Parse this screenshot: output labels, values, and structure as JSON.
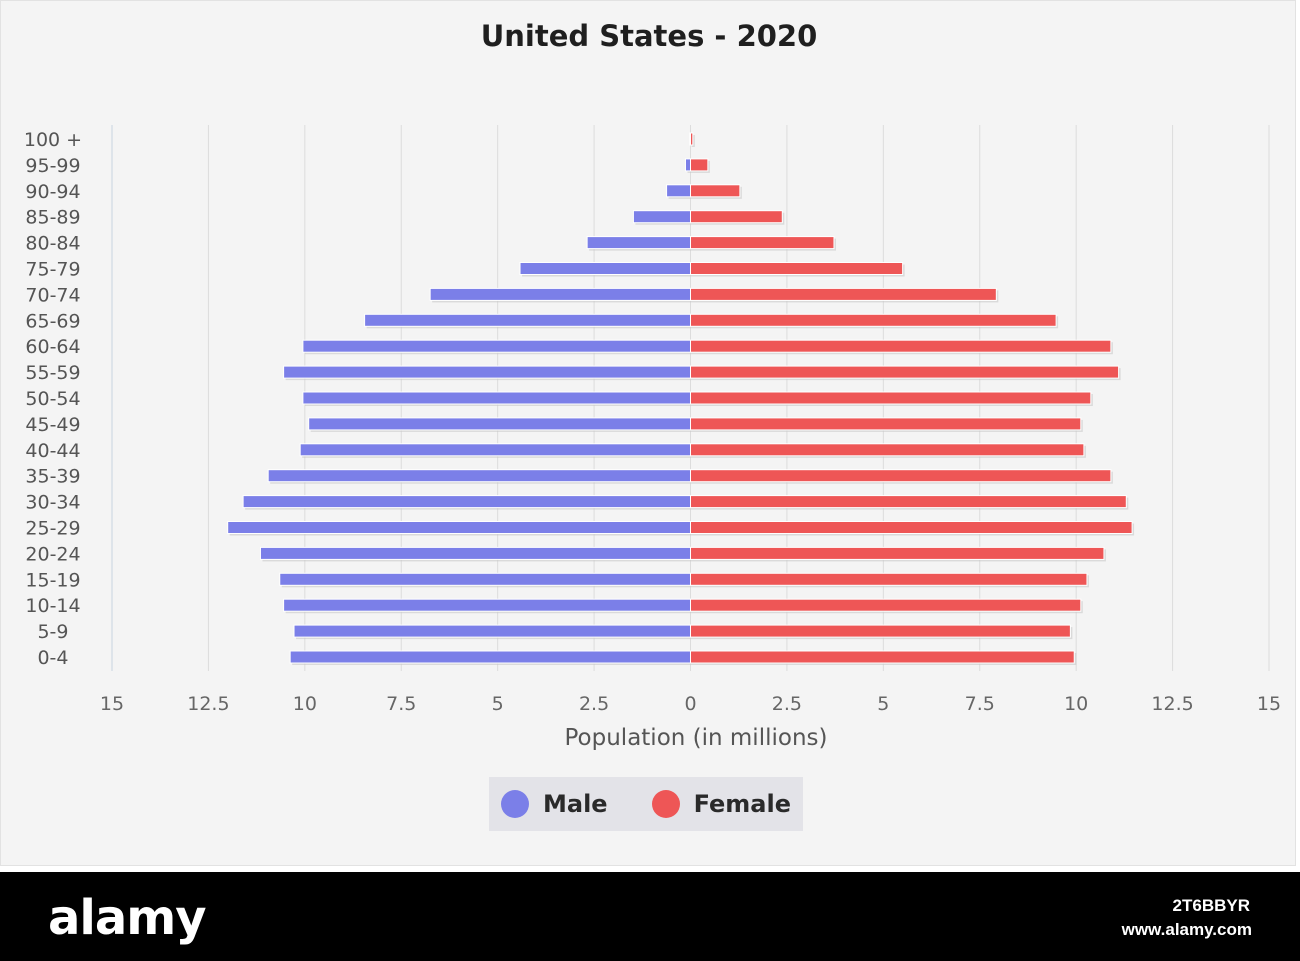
{
  "chart_data": {
    "type": "bar",
    "orientation": "horizontal",
    "title": "United States - 2020",
    "xlabel": "Population (in millions)",
    "ylabel": "",
    "xlim": [
      -15,
      15
    ],
    "x_ticks": [
      -15,
      -12.5,
      -10,
      -7.5,
      -5,
      -2.5,
      0,
      2.5,
      5,
      7.5,
      10,
      12.5,
      15
    ],
    "x_tick_labels": [
      "15",
      "12.5",
      "10",
      "7.5",
      "5",
      "2.5",
      "0",
      "2.5",
      "5",
      "7.5",
      "10",
      "12.5",
      "15"
    ],
    "grid": true,
    "legend_position": "bottom-center",
    "categories": [
      "100 +",
      "95-99",
      "90-94",
      "85-89",
      "80-84",
      "75-79",
      "70-74",
      "65-69",
      "60-64",
      "55-59",
      "50-54",
      "45-49",
      "40-44",
      "35-39",
      "30-34",
      "25-29",
      "20-24",
      "15-19",
      "10-14",
      "5-9",
      "0-4"
    ],
    "series": [
      {
        "name": "Male",
        "color": "#7b7fe8",
        "values": [
          0.02,
          0.13,
          0.62,
          1.48,
          2.68,
          4.42,
          6.75,
          8.45,
          10.05,
          10.55,
          10.05,
          9.9,
          10.12,
          10.95,
          11.6,
          12.0,
          11.15,
          10.65,
          10.55,
          10.28,
          10.38
        ]
      },
      {
        "name": "Female",
        "color": "#ee5656",
        "values": [
          0.06,
          0.45,
          1.28,
          2.38,
          3.72,
          5.5,
          7.93,
          9.48,
          10.9,
          11.1,
          10.38,
          10.12,
          10.2,
          10.9,
          11.3,
          11.45,
          10.72,
          10.28,
          10.12,
          9.85,
          9.95
        ]
      }
    ]
  },
  "watermark": {
    "logo": "alamy",
    "image_id": "2T6BBYR",
    "url": "www.alamy.com"
  }
}
